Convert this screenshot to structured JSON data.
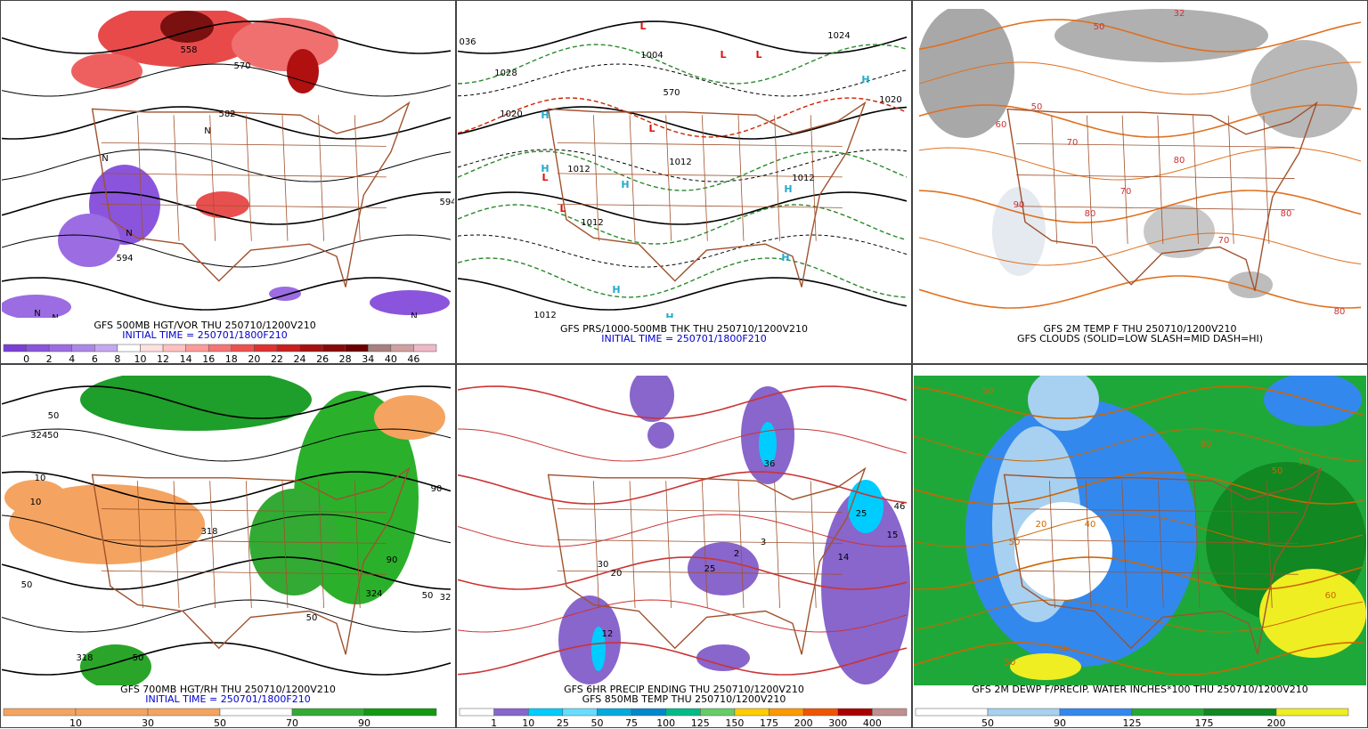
{
  "panels": [
    {
      "caption": [
        "GFS 500MB HGT/VOR THU 250710/1200V210",
        "INITIAL TIME = 250701/1800F210"
      ],
      "caption_colors": [
        "#000000",
        "#0000cc"
      ],
      "labels": [
        "558",
        "570",
        "582",
        "594",
        "594",
        "N",
        "N",
        "N",
        "N",
        "N",
        "N"
      ],
      "colorbar": {
        "labels": [
          0,
          2,
          4,
          6,
          8,
          10,
          12,
          14,
          16,
          18,
          20,
          22,
          24,
          26,
          28,
          34,
          40,
          46
        ],
        "colors": [
          "#7a3fd6",
          "#8a55dc",
          "#9b6ce2",
          "#ad86e8",
          "#c4a8ef",
          "#ffffff",
          "#ffe0e0",
          "#ffc0c0",
          "#ff9a9a",
          "#f57575",
          "#ee5050",
          "#e03030",
          "#c81e1e",
          "#a81010",
          "#880808",
          "#6b0000",
          "#a88080",
          "#d0a0a0",
          "#f0b8c8"
        ]
      }
    },
    {
      "caption": [
        "GFS PRS/1000-500MB THK THU 250710/1200V210",
        "INITIAL TIME = 250701/1800F210"
      ],
      "caption_colors": [
        "#000000",
        "#0000cc"
      ],
      "labels": [
        "036",
        "1028",
        "1020",
        "1004",
        "1012",
        "1012",
        "1012",
        "1020",
        "1024",
        "1012",
        "1012",
        "570"
      ],
      "lows": [
        "L",
        "L",
        "L",
        "L",
        "L",
        "L"
      ],
      "highs": [
        "H",
        "H",
        "H",
        "H",
        "H",
        "H",
        "H",
        "H"
      ]
    },
    {
      "caption": [
        "GFS 2M TEMP F THU 250710/1200V210",
        "GFS CLOUDS (SOLID=LOW SLASH=MID DASH=HI)"
      ],
      "caption_colors": [
        "#000000",
        "#000000"
      ],
      "labels": [
        "50",
        "70",
        "80",
        "90",
        "70",
        "80",
        "70",
        "60",
        "50",
        "80",
        "80",
        "32"
      ]
    },
    {
      "caption": [
        "GFS 700MB HGT/RH THU 250710/1200V210",
        "INITIAL TIME = 250701/1800F210"
      ],
      "caption_colors": [
        "#000000",
        "#0000cc"
      ],
      "labels": [
        "50",
        "32450",
        "10",
        "10",
        "318",
        "50",
        "50",
        "318",
        "50",
        "324",
        "50",
        "32",
        "90",
        "90"
      ],
      "colorbar": {
        "labels": [
          10,
          30,
          50,
          70,
          90
        ],
        "colors": [
          "#f4a460",
          "#f4a460",
          "#f4a460",
          "#ffffff",
          "#33aa33",
          "#119911"
        ]
      }
    },
    {
      "caption": [
        "GFS 6HR PRECIP ENDING THU 250710/1200V210",
        "GFS 850MB TEMP THU 250710/1200V210"
      ],
      "caption_colors": [
        "#000000",
        "#000000"
      ],
      "labels": [
        "25",
        "46",
        "15",
        "14",
        "2",
        "3",
        "25",
        "36",
        "12",
        "30",
        "20"
      ],
      "colorbar": {
        "labels": [
          1,
          10,
          25,
          50,
          75,
          100,
          125,
          150,
          175,
          200,
          300,
          400
        ],
        "colors": [
          "#ffffff",
          "#8866cc",
          "#00ccff",
          "#66ddff",
          "#00aadd",
          "#0088cc",
          "#00bb88",
          "#66cc66",
          "#ffcc00",
          "#ff9900",
          "#ee5500",
          "#aa0000",
          "#c09090"
        ]
      }
    },
    {
      "caption": [
        "GFS 2M DEWP F/PRECIP. WATER INCHES*100 THU 250710/1200V210"
      ],
      "caption_colors": [
        "#000000"
      ],
      "labels": [
        "50",
        "50",
        "20",
        "40",
        "50",
        "80",
        "70",
        "60",
        "40",
        "50"
      ],
      "colorbar": {
        "labels": [
          50,
          90,
          125,
          175,
          200
        ],
        "colors": [
          "#ffffff",
          "#a8d0f0",
          "#3388ee",
          "#22aa33",
          "#118822",
          "#eeee22"
        ]
      }
    }
  ]
}
